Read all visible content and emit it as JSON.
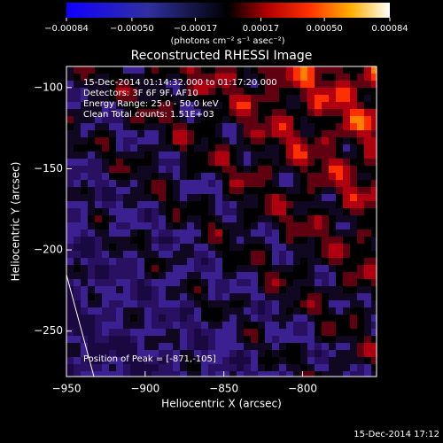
{
  "chart_data": {
    "type": "image",
    "title": "Reconstructed RHESSI Image",
    "xlabel": "Heliocentric X (arcsec)",
    "ylabel": "Heliocentric Y (arcsec)",
    "colorbar_label": "(photons cm⁻² s⁻¹ asec⁻²)",
    "annotations": [
      "15-Dec-2014 01:14:32.000 to 01:17:20.000",
      "Detectors: 3F 6F 9F, AF10",
      "Energy Range: 25.0 - 50.0 keV",
      "Clean     Total counts: 1.51E+03",
      "Position of Peak = [-871,-105]"
    ],
    "footer": "15-Dec-2014 17:12",
    "xlim": [
      -950,
      -753
    ],
    "xticks": [
      {
        "value": -950,
        "label": "−950"
      },
      {
        "value": -900,
        "label": "−900"
      },
      {
        "value": -850,
        "label": "−850"
      },
      {
        "value": -800,
        "label": "−800"
      }
    ],
    "ylim": [
      -278,
      -87
    ],
    "yticks": [
      {
        "value": -100,
        "label": "−100"
      },
      {
        "value": -150,
        "label": "−150"
      },
      {
        "value": -200,
        "label": "−200"
      },
      {
        "value": -250,
        "label": "−250"
      }
    ],
    "clim": [
      -0.00084,
      0.00084
    ],
    "cticks": [
      {
        "value": -0.00084,
        "label": "−0.00084"
      },
      {
        "value": -0.0005,
        "label": "−0.00050"
      },
      {
        "value": -0.00017,
        "label": "−0.00017"
      },
      {
        "value": 0.00017,
        "label": "0.00017"
      },
      {
        "value": 0.0005,
        "label": "0.00050"
      },
      {
        "value": 0.00084,
        "label": "0.00084"
      }
    ]
  }
}
